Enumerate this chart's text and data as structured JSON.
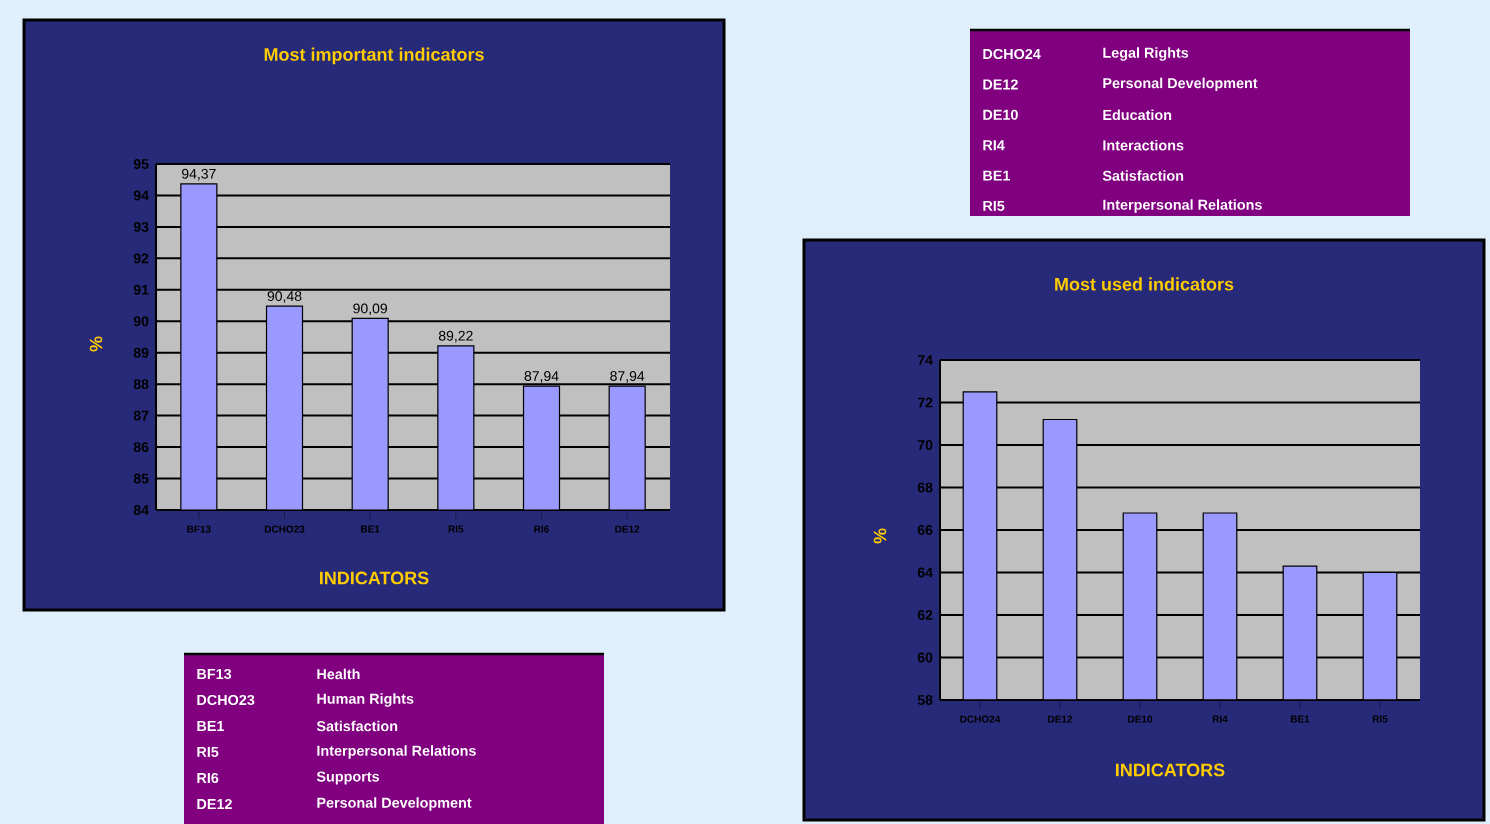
{
  "chart_data": [
    {
      "type": "bar",
      "title": "Most important indicators",
      "xlabel": "INDICATORS",
      "ylabel": "%",
      "categories": [
        "BF13",
        "DCHO23",
        "BE1",
        "RI5",
        "RI6",
        "DE12"
      ],
      "values": [
        94.37,
        90.48,
        90.09,
        89.22,
        87.94,
        87.94
      ],
      "value_labels": [
        "94,37",
        "90,48",
        "90,09",
        "89,22",
        "87,94",
        "87,94"
      ],
      "color": "#9999ff",
      "ylim": [
        84,
        95
      ],
      "yticks": [
        84,
        85,
        86,
        87,
        88,
        89,
        90,
        91,
        92,
        93,
        94,
        95
      ],
      "grid": "y"
    },
    {
      "type": "other",
      "annotations": [
        "BF13",
        "Health",
        "DCHO23",
        "Human Rights",
        "BE1",
        "Satisfaction",
        "RI5",
        "Interpersonal Relations",
        "RI6",
        "Supports",
        "DE12",
        "Personal Development"
      ]
    },
    {
      "type": "other",
      "annotations": [
        "DCHO24",
        "Legal Rights",
        "DE12",
        "Personal Development",
        "DE10",
        "Education",
        "RI4",
        "Interactions",
        "BE1",
        "Satisfaction",
        "RI5",
        "Interpersonal Relations"
      ]
    },
    {
      "type": "bar",
      "title": "Most used indicators",
      "xlabel": "INDICATORS",
      "ylabel": "%",
      "categories": [
        "DCHO24",
        "DE12",
        "DE10",
        "RI4",
        "BE1",
        "RI5"
      ],
      "values": [
        72.5,
        71.2,
        66.8,
        66.8,
        64.3,
        64.0
      ],
      "color": "#9999ff",
      "ylim": [
        58,
        74
      ],
      "yticks": [
        58,
        60,
        62,
        64,
        66,
        68,
        70,
        72,
        74
      ],
      "grid": "y"
    }
  ]
}
